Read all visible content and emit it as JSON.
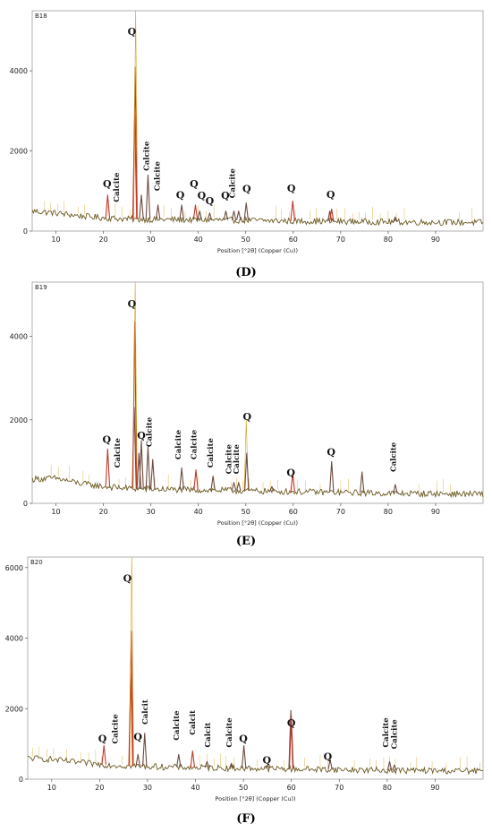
{
  "chart_data": [
    {
      "type": "line",
      "panel": "(D)",
      "sample": "B18",
      "xlabel": "Position [°2θ] (Copper (Cu))",
      "xlim": [
        5,
        100
      ],
      "ylim": [
        0,
        5500
      ],
      "xticks": [
        10,
        20,
        30,
        40,
        50,
        60,
        70,
        80,
        90
      ],
      "yticks": [
        0,
        2000,
        4000
      ],
      "baseline": [
        [
          5,
          500
        ],
        [
          10,
          450
        ],
        [
          15,
          380
        ],
        [
          20,
          330
        ],
        [
          25,
          300
        ],
        [
          30,
          290
        ],
        [
          40,
          280
        ],
        [
          50,
          270
        ],
        [
          60,
          250
        ],
        [
          70,
          240
        ],
        [
          80,
          230
        ],
        [
          90,
          220
        ],
        [
          100,
          215
        ]
      ],
      "peaks": [
        {
          "x": 20.9,
          "y": 900,
          "c": "#c0392b"
        },
        {
          "x": 26.6,
          "y": 2900,
          "c": "#c0392b"
        },
        {
          "x": 26.7,
          "y": 4100,
          "c": "#c0392b"
        },
        {
          "x": 26.8,
          "y": 5500,
          "c": "#d4a017"
        },
        {
          "x": 28.0,
          "y": 900,
          "c": "#6d4c41"
        },
        {
          "x": 29.4,
          "y": 1400,
          "c": "#6d4c41"
        },
        {
          "x": 31.5,
          "y": 650,
          "c": "#6d4c41"
        },
        {
          "x": 36.5,
          "y": 650,
          "c": "#6d4c41"
        },
        {
          "x": 39.4,
          "y": 650,
          "c": "#c0392b"
        },
        {
          "x": 40.3,
          "y": 500,
          "c": "#6d4c41"
        },
        {
          "x": 42.4,
          "y": 450,
          "c": "#6d4c41"
        },
        {
          "x": 45.8,
          "y": 500,
          "c": "#6d4c41"
        },
        {
          "x": 47.5,
          "y": 500,
          "c": "#6d4c41"
        },
        {
          "x": 48.5,
          "y": 500,
          "c": "#6d4c41"
        },
        {
          "x": 50.1,
          "y": 700,
          "c": "#6d4c41"
        },
        {
          "x": 59.9,
          "y": 750,
          "c": "#c0392b"
        },
        {
          "x": 67.7,
          "y": 500,
          "c": "#6d4c41"
        },
        {
          "x": 68.1,
          "y": 550,
          "c": "#c0392b"
        },
        {
          "x": 81.5,
          "y": 350,
          "c": "#6d4c41"
        }
      ],
      "annotations": [
        {
          "text": "Q",
          "x": 26.0,
          "y": 4900,
          "kind": "Q"
        },
        {
          "text": "Calcite",
          "x": 29.6,
          "y": 1500,
          "kind": "C"
        },
        {
          "text": "Calcite",
          "x": 31.9,
          "y": 1000,
          "kind": "C"
        },
        {
          "text": "Calcite",
          "x": 23.3,
          "y": 720,
          "kind": "C"
        },
        {
          "text": "Calcite",
          "x": 47.7,
          "y": 820,
          "kind": "C"
        },
        {
          "text": "Q",
          "x": 20.8,
          "y": 1100,
          "kind": "Q"
        },
        {
          "text": "Q",
          "x": 36.2,
          "y": 820,
          "kind": "Q"
        },
        {
          "text": "Q",
          "x": 39.1,
          "y": 1100,
          "kind": "Q"
        },
        {
          "text": "Q",
          "x": 40.7,
          "y": 800,
          "kind": "Q"
        },
        {
          "text": "Q",
          "x": 42.4,
          "y": 670,
          "kind": "Q"
        },
        {
          "text": "Q",
          "x": 45.7,
          "y": 800,
          "kind": "Q"
        },
        {
          "text": "Q",
          "x": 50.2,
          "y": 970,
          "kind": "Q"
        },
        {
          "text": "Q",
          "x": 59.6,
          "y": 980,
          "kind": "Q"
        },
        {
          "text": "Q",
          "x": 67.9,
          "y": 830,
          "kind": "Q"
        }
      ]
    },
    {
      "type": "line",
      "panel": "(E)",
      "sample": "B19",
      "xlabel": "Position [°2θ] (Copper (Cu))",
      "xlim": [
        5,
        100
      ],
      "ylim": [
        0,
        5300
      ],
      "xticks": [
        10,
        20,
        30,
        40,
        50,
        60,
        70,
        80,
        90
      ],
      "yticks": [
        0,
        2000,
        4000
      ],
      "baseline": [
        [
          5,
          580
        ],
        [
          10,
          600
        ],
        [
          15,
          480
        ],
        [
          20,
          400
        ],
        [
          25,
          360
        ],
        [
          30,
          340
        ],
        [
          40,
          320
        ],
        [
          50,
          300
        ],
        [
          60,
          280
        ],
        [
          70,
          260
        ],
        [
          80,
          240
        ],
        [
          90,
          230
        ],
        [
          100,
          220
        ]
      ],
      "peaks": [
        {
          "x": 20.9,
          "y": 1300,
          "c": "#c0392b"
        },
        {
          "x": 26.5,
          "y": 2300,
          "c": "#6d4c41"
        },
        {
          "x": 26.6,
          "y": 4350,
          "c": "#c0392b"
        },
        {
          "x": 26.7,
          "y": 5300,
          "c": "#d4a017"
        },
        {
          "x": 27.5,
          "y": 1200,
          "c": "#6d4c41"
        },
        {
          "x": 28.0,
          "y": 1500,
          "c": "#6d4c41"
        },
        {
          "x": 29.4,
          "y": 1350,
          "c": "#6d4c41"
        },
        {
          "x": 30.4,
          "y": 1050,
          "c": "#6d4c41"
        },
        {
          "x": 36.5,
          "y": 850,
          "c": "#6d4c41"
        },
        {
          "x": 39.5,
          "y": 800,
          "c": "#c0392b"
        },
        {
          "x": 43.1,
          "y": 650,
          "c": "#6d4c41"
        },
        {
          "x": 47.5,
          "y": 500,
          "c": "#6d4c41"
        },
        {
          "x": 48.5,
          "y": 500,
          "c": "#6d4c41"
        },
        {
          "x": 50.1,
          "y": 2000,
          "c": "#d4a017"
        },
        {
          "x": 50.2,
          "y": 1200,
          "c": "#6d4c41"
        },
        {
          "x": 55.5,
          "y": 400,
          "c": "#6d4c41"
        },
        {
          "x": 59.9,
          "y": 700,
          "c": "#c0392b"
        },
        {
          "x": 68.1,
          "y": 1000,
          "c": "#6d4c41"
        },
        {
          "x": 74.5,
          "y": 750,
          "c": "#6d4c41"
        },
        {
          "x": 81.5,
          "y": 450,
          "c": "#6d4c41"
        }
      ],
      "annotations": [
        {
          "text": "Q",
          "x": 26.0,
          "y": 4700,
          "kind": "Q"
        },
        {
          "text": "Q",
          "x": 28.0,
          "y": 1550,
          "kind": "Q"
        },
        {
          "text": "Calcite",
          "x": 30.2,
          "y": 1350,
          "kind": "C"
        },
        {
          "text": "Q",
          "x": 20.7,
          "y": 1450,
          "kind": "Q"
        },
        {
          "text": "Calcite",
          "x": 23.5,
          "y": 850,
          "kind": "C"
        },
        {
          "text": "Calcite",
          "x": 36.3,
          "y": 1050,
          "kind": "C"
        },
        {
          "text": "Calcite",
          "x": 39.6,
          "y": 1050,
          "kind": "C"
        },
        {
          "text": "Calcite",
          "x": 43.1,
          "y": 850,
          "kind": "C"
        },
        {
          "text": "Calcite",
          "x": 46.9,
          "y": 700,
          "kind": "C"
        },
        {
          "text": "Calcite",
          "x": 48.5,
          "y": 700,
          "kind": "C"
        },
        {
          "text": "Q",
          "x": 50.3,
          "y": 2000,
          "kind": "Q"
        },
        {
          "text": "Q",
          "x": 59.5,
          "y": 650,
          "kind": "Q"
        },
        {
          "text": "Q",
          "x": 68.0,
          "y": 1150,
          "kind": "Q"
        },
        {
          "text": "Calcite",
          "x": 81.6,
          "y": 750,
          "kind": "C"
        }
      ]
    },
    {
      "type": "line",
      "panel": "(F)",
      "sample": "B20",
      "xlabel": "Position [°2θ] (Copper (Cu))",
      "xlim": [
        5,
        100
      ],
      "ylim": [
        0,
        6300
      ],
      "xticks": [
        10,
        20,
        30,
        40,
        50,
        60,
        70,
        80,
        90
      ],
      "yticks": [
        0,
        2000,
        4000,
        6000
      ],
      "baseline": [
        [
          5,
          600
        ],
        [
          10,
          560
        ],
        [
          15,
          480
        ],
        [
          20,
          420
        ],
        [
          25,
          380
        ],
        [
          30,
          360
        ],
        [
          40,
          330
        ],
        [
          50,
          310
        ],
        [
          60,
          290
        ],
        [
          70,
          270
        ],
        [
          80,
          250
        ],
        [
          90,
          240
        ],
        [
          100,
          230
        ]
      ],
      "peaks": [
        {
          "x": 20.9,
          "y": 950,
          "c": "#c0392b"
        },
        {
          "x": 26.5,
          "y": 3000,
          "c": "#c0392b"
        },
        {
          "x": 26.6,
          "y": 4200,
          "c": "#c0392b"
        },
        {
          "x": 26.7,
          "y": 6300,
          "c": "#d4a017"
        },
        {
          "x": 28.0,
          "y": 700,
          "c": "#6d4c41"
        },
        {
          "x": 29.4,
          "y": 1300,
          "c": "#6d4c41"
        },
        {
          "x": 36.5,
          "y": 700,
          "c": "#6d4c41"
        },
        {
          "x": 39.4,
          "y": 800,
          "c": "#c0392b"
        },
        {
          "x": 42.4,
          "y": 500,
          "c": "#6d4c41"
        },
        {
          "x": 47.5,
          "y": 450,
          "c": "#6d4c41"
        },
        {
          "x": 50.1,
          "y": 950,
          "c": "#6d4c41"
        },
        {
          "x": 55.0,
          "y": 400,
          "c": "#6d4c41"
        },
        {
          "x": 59.9,
          "y": 1950,
          "c": "#6d4c41"
        },
        {
          "x": 60.0,
          "y": 1800,
          "c": "#c0392b"
        },
        {
          "x": 68.1,
          "y": 550,
          "c": "#6d4c41"
        },
        {
          "x": 80.5,
          "y": 500,
          "c": "#6d4c41"
        },
        {
          "x": 81.5,
          "y": 400,
          "c": "#6d4c41"
        }
      ],
      "annotations": [
        {
          "text": "Q",
          "x": 25.8,
          "y": 5600,
          "kind": "Q"
        },
        {
          "text": "Q",
          "x": 20.6,
          "y": 1050,
          "kind": "Q"
        },
        {
          "text": "Calcite",
          "x": 23.8,
          "y": 1000,
          "kind": "C"
        },
        {
          "text": "Q",
          "x": 28.0,
          "y": 1100,
          "kind": "Q"
        },
        {
          "text": "Calcit",
          "x": 30.0,
          "y": 1550,
          "kind": "C"
        },
        {
          "text": "Calcite",
          "x": 36.5,
          "y": 1100,
          "kind": "C"
        },
        {
          "text": "Calcit",
          "x": 39.9,
          "y": 1250,
          "kind": "C"
        },
        {
          "text": "Calcit",
          "x": 43.1,
          "y": 900,
          "kind": "C"
        },
        {
          "text": "Calcite",
          "x": 47.6,
          "y": 900,
          "kind": "C"
        },
        {
          "text": "Q",
          "x": 50.0,
          "y": 1050,
          "kind": "Q"
        },
        {
          "text": "Q",
          "x": 54.9,
          "y": 450,
          "kind": "Q"
        },
        {
          "text": "Q",
          "x": 60.0,
          "y": 1500,
          "kind": "Q"
        },
        {
          "text": "Q",
          "x": 67.6,
          "y": 550,
          "kind": "Q"
        },
        {
          "text": "Calcite",
          "x": 80.2,
          "y": 900,
          "kind": "C"
        },
        {
          "text": "Calcite",
          "x": 82.0,
          "y": 850,
          "kind": "C"
        }
      ]
    }
  ]
}
